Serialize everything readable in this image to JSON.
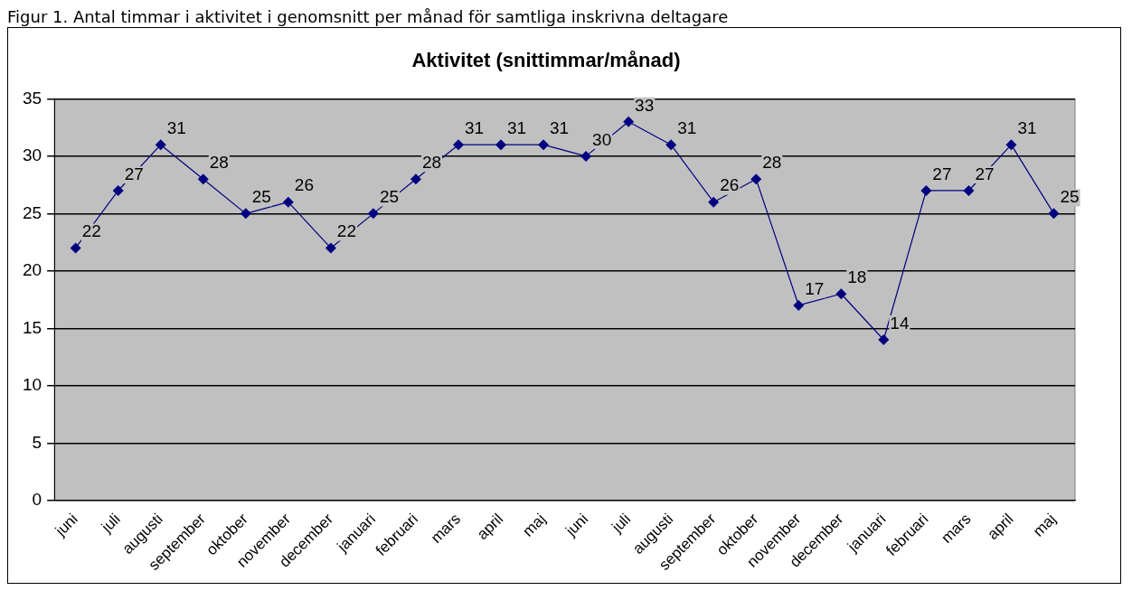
{
  "chart_data": {
    "type": "line",
    "title": "Aktivitet (snittimmar/månad)",
    "annotations": [
      "Figur 1. Antal timmar i aktivitet i genomsnitt per månad för samtliga inskrivna deltagare"
    ],
    "categories": [
      "juni",
      "juli",
      "augusti",
      "september",
      "oktober",
      "november",
      "december",
      "januari",
      "februari",
      "mars",
      "april",
      "maj",
      "juni",
      "juli",
      "augusti",
      "september",
      "oktober",
      "november",
      "december",
      "januari",
      "februari",
      "mars",
      "april",
      "maj"
    ],
    "series": [
      {
        "color": "#000080",
        "values": [
          22,
          27,
          31,
          28,
          25,
          26,
          22,
          25,
          28,
          31,
          31,
          31,
          30,
          33,
          31,
          26,
          28,
          17,
          18,
          14,
          27,
          27,
          31,
          25
        ]
      }
    ],
    "ylim": [
      0,
      35
    ],
    "yticks": [
      0,
      5,
      10,
      15,
      20,
      25,
      30,
      35
    ],
    "grid": "y",
    "legend": false,
    "marker": "diamond",
    "line_style": "solid",
    "data_labels": true
  }
}
